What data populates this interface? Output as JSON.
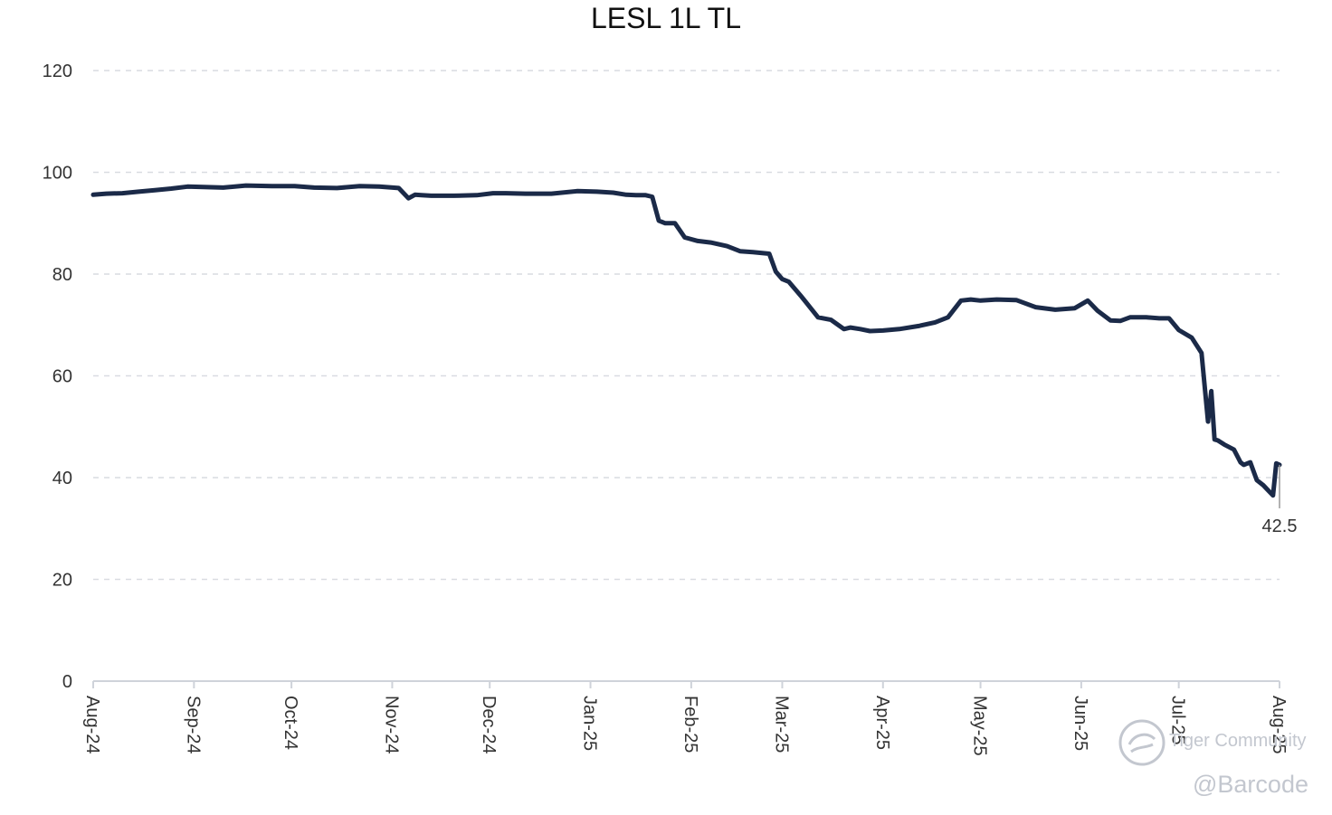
{
  "chart_data": {
    "type": "line",
    "title": "LESL 1L TL",
    "xlabel": "",
    "ylabel": "",
    "ylim": [
      0,
      120
    ],
    "yticks": [
      0,
      20,
      40,
      60,
      80,
      100,
      120
    ],
    "xlim": [
      "2024-08-01",
      "2025-08-01"
    ],
    "xticks": [
      "2024-08-01",
      "2024-09-01",
      "2024-10-01",
      "2024-11-01",
      "2024-12-01",
      "2025-01-01",
      "2025-02-01",
      "2025-03-01",
      "2025-04-01",
      "2025-05-01",
      "2025-06-01",
      "2025-07-01",
      "2025-08-01"
    ],
    "tick_labels": [
      "Aug-24",
      "Sep-24",
      "Oct-24",
      "Nov-24",
      "Dec-24",
      "Jan-25",
      "Feb-25",
      "Mar-25",
      "Apr-25",
      "May-25",
      "Jun-25",
      "Jul-25",
      "Aug-25"
    ],
    "grid": true,
    "line_color": "#1b2a48",
    "series": [
      {
        "x": [
          "2024-08-01",
          "2024-08-05",
          "2024-08-10",
          "2024-08-15",
          "2024-08-20",
          "2024-08-25",
          "2024-08-30",
          "2024-09-04",
          "2024-09-10",
          "2024-09-17",
          "2024-09-25",
          "2024-10-02",
          "2024-10-08",
          "2024-10-15",
          "2024-10-22",
          "2024-10-28",
          "2024-11-03",
          "2024-11-06",
          "2024-11-08",
          "2024-11-10",
          "2024-11-13",
          "2024-11-20",
          "2024-11-27",
          "2024-12-02",
          "2024-12-06",
          "2024-12-12",
          "2024-12-20",
          "2024-12-28",
          "2025-01-03",
          "2025-01-08",
          "2025-01-12",
          "2025-01-15",
          "2025-01-18",
          "2025-01-20",
          "2025-01-22",
          "2025-01-24",
          "2025-01-27",
          "2025-01-30",
          "2025-02-03",
          "2025-02-07",
          "2025-02-12",
          "2025-02-16",
          "2025-02-20",
          "2025-02-25",
          "2025-02-27",
          "2025-03-01",
          "2025-03-03",
          "2025-03-07",
          "2025-03-12",
          "2025-03-16",
          "2025-03-20",
          "2025-03-22",
          "2025-03-25",
          "2025-03-28",
          "2025-04-01",
          "2025-04-06",
          "2025-04-12",
          "2025-04-17",
          "2025-04-21",
          "2025-04-25",
          "2025-04-28",
          "2025-05-01",
          "2025-05-06",
          "2025-05-12",
          "2025-05-18",
          "2025-05-24",
          "2025-05-30",
          "2025-06-03",
          "2025-06-06",
          "2025-06-10",
          "2025-06-13",
          "2025-06-16",
          "2025-06-21",
          "2025-06-25",
          "2025-06-28",
          "2025-07-01",
          "2025-07-05",
          "2025-07-08",
          "2025-07-10",
          "2025-07-11",
          "2025-07-12",
          "2025-07-13",
          "2025-07-15",
          "2025-07-18",
          "2025-07-20",
          "2025-07-21",
          "2025-07-23",
          "2025-07-25",
          "2025-07-27",
          "2025-07-30",
          "2025-07-31",
          "2025-08-01"
        ],
        "y": [
          95.6,
          95.8,
          95.9,
          96.2,
          96.5,
          96.8,
          97.2,
          97.1,
          97.0,
          97.4,
          97.3,
          97.3,
          97.0,
          96.9,
          97.3,
          97.2,
          96.9,
          94.9,
          95.6,
          95.5,
          95.4,
          95.4,
          95.5,
          95.9,
          95.9,
          95.8,
          95.8,
          96.3,
          96.2,
          96.0,
          95.6,
          95.5,
          95.5,
          95.2,
          90.5,
          90.0,
          90.0,
          87.2,
          86.5,
          86.2,
          85.5,
          84.5,
          84.3,
          84.0,
          80.5,
          79.0,
          78.5,
          75.5,
          71.5,
          71.0,
          69.2,
          69.5,
          69.2,
          68.8,
          68.9,
          69.2,
          69.8,
          70.5,
          71.5,
          74.8,
          75.0,
          74.8,
          75.0,
          74.9,
          73.5,
          73.0,
          73.3,
          74.8,
          72.8,
          70.9,
          70.8,
          71.5,
          71.5,
          71.3,
          71.3,
          69.0,
          67.5,
          64.5,
          51.0,
          57.0,
          47.5,
          47.3,
          46.5,
          45.5,
          43.0,
          42.5,
          43.0,
          39.5,
          38.5,
          36.5,
          42.8,
          42.5
        ]
      }
    ],
    "last_value_label": "42.5"
  },
  "watermark": {
    "top": "Tiger Community",
    "bottom": "@Barcode"
  }
}
